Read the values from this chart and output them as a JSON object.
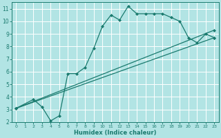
{
  "title": "",
  "xlabel": "Humidex (Indice chaleur)",
  "ylabel": "",
  "bg_color": "#b2e4e4",
  "grid_color": "#ffffff",
  "line_color": "#1a7a6e",
  "marker": "D",
  "markersize": 2.0,
  "linewidth": 0.9,
  "xlim": [
    -0.5,
    23.5
  ],
  "ylim": [
    2,
    11.5
  ],
  "xticks": [
    0,
    1,
    2,
    3,
    4,
    5,
    6,
    7,
    8,
    9,
    10,
    11,
    12,
    13,
    14,
    15,
    16,
    17,
    18,
    19,
    20,
    21,
    22,
    23
  ],
  "yticks": [
    2,
    3,
    4,
    5,
    6,
    7,
    8,
    9,
    10,
    11
  ],
  "line1_x": [
    0,
    2,
    3,
    4,
    5,
    6,
    7,
    8,
    9,
    10,
    11,
    12,
    13,
    14,
    15,
    16,
    17,
    18,
    19,
    20,
    21,
    22,
    23
  ],
  "line1_y": [
    3.1,
    3.8,
    3.2,
    2.1,
    2.5,
    5.85,
    5.85,
    6.35,
    7.85,
    9.6,
    10.5,
    10.1,
    11.2,
    10.6,
    10.6,
    10.6,
    10.6,
    10.3,
    10.0,
    8.7,
    8.3,
    9.0,
    8.7
  ],
  "line2_x": [
    0,
    23
  ],
  "line2_y": [
    3.1,
    9.3
  ],
  "line3_x": [
    0,
    23
  ],
  "line3_y": [
    3.1,
    8.7
  ]
}
